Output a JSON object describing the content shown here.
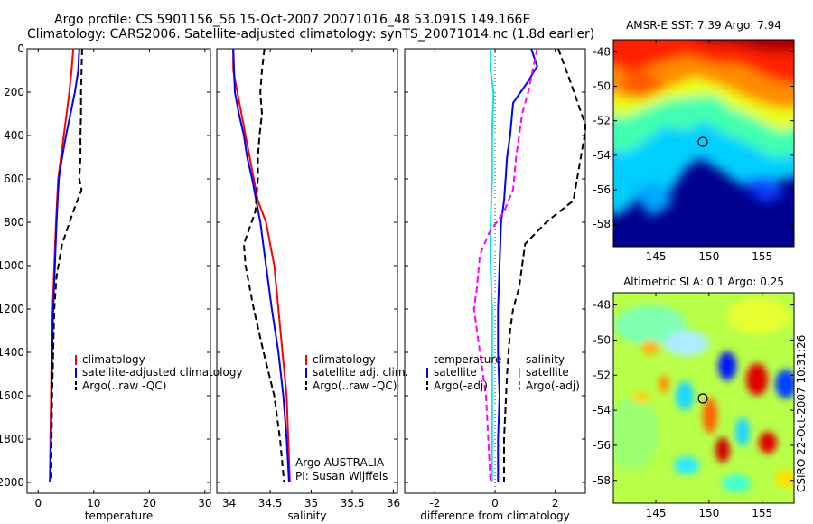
{
  "header": {
    "title_line1": "Argo profile: CS 5901156_56 15-Oct-2007 20071016_48 53.091S 149.166E",
    "title_line2": "Climatology: CARS2006. Satellite-adjusted climatology: synTS_20071014.nc (1.8d earlier)"
  },
  "footer": {
    "stamp": "CSIRO 22-Oct-2007 10:31:26"
  },
  "credits": {
    "line1": "Argo AUSTRALIA",
    "line2": "PI: Susan Wijffels"
  },
  "colors": {
    "red": "#ff0000",
    "blue": "#0000ff",
    "black": "#000000",
    "cyan": "#00e5ee",
    "magenta": "#ff00ff"
  },
  "chart_data": [
    {
      "type": "line",
      "id": "temperature",
      "xlabel": "temperature",
      "xlim": [
        -2,
        31
      ],
      "ylim": [
        2050,
        0
      ],
      "xticks": [
        0,
        10,
        20,
        30
      ],
      "yticks": [
        0,
        200,
        400,
        600,
        800,
        1000,
        1200,
        1400,
        1600,
        1800,
        2000
      ],
      "legend": [
        "climatology",
        "satellite-adjusted climatology",
        "Argo(..raw -QC)"
      ],
      "series": [
        {
          "name": "climatology",
          "color": "red",
          "dash": "",
          "x": [
            6.3,
            6.0,
            5.6,
            5.1,
            4.6,
            4.1,
            3.6,
            3.2,
            2.9,
            2.6,
            2.4,
            2.3,
            2.2,
            2.15,
            2.1
          ],
          "y": [
            0,
            100,
            200,
            300,
            400,
            500,
            600,
            800,
            1000,
            1200,
            1400,
            1600,
            1800,
            1900,
            2000
          ]
        },
        {
          "name": "satellite-adjusted climatology",
          "color": "blue",
          "dash": "",
          "x": [
            7.4,
            7.2,
            6.6,
            5.8,
            5.0,
            4.3,
            3.7,
            3.3,
            3.0,
            2.7,
            2.5,
            2.4,
            2.3,
            2.2,
            2.15
          ],
          "y": [
            0,
            100,
            200,
            300,
            400,
            500,
            600,
            800,
            1000,
            1200,
            1400,
            1600,
            1800,
            1900,
            2000
          ]
        },
        {
          "name": "Argo(..raw -QC)",
          "color": "black",
          "dash": "7,4",
          "x": [
            7.9,
            7.8,
            7.7,
            7.7,
            7.6,
            7.6,
            7.4,
            7.8,
            6.3,
            4.3,
            3.3,
            2.9,
            2.7,
            2.5,
            2.4,
            2.35
          ],
          "y": [
            0,
            100,
            200,
            300,
            400,
            500,
            600,
            650,
            750,
            900,
            1050,
            1200,
            1400,
            1600,
            1800,
            2000
          ]
        }
      ]
    },
    {
      "type": "line",
      "id": "salinity",
      "xlabel": "salinity",
      "xlim": [
        33.85,
        36.05
      ],
      "ylim": [
        2050,
        0
      ],
      "xticks": [
        34,
        34.5,
        35,
        35.5,
        36
      ],
      "yticks": [
        0,
        200,
        400,
        600,
        800,
        1000,
        1200,
        1400,
        1600,
        1800,
        2000
      ],
      "legend": [
        "climatology",
        "satellite adj. clim.",
        "Argo(..raw -QC)"
      ],
      "series": [
        {
          "name": "climatology",
          "color": "red",
          "dash": "",
          "x": [
            34.05,
            34.05,
            34.1,
            34.15,
            34.2,
            34.25,
            34.3,
            34.35,
            34.45,
            34.55,
            34.6,
            34.65,
            34.7,
            34.72,
            34.74
          ],
          "y": [
            0,
            100,
            200,
            300,
            400,
            500,
            600,
            700,
            800,
            1000,
            1200,
            1400,
            1600,
            1800,
            2000
          ]
        },
        {
          "name": "satellite adj. clim.",
          "color": "blue",
          "dash": "",
          "x": [
            34.05,
            34.06,
            34.07,
            34.12,
            34.18,
            34.22,
            34.28,
            34.33,
            34.38,
            34.45,
            34.52,
            34.6,
            34.66,
            34.7,
            34.73
          ],
          "y": [
            0,
            100,
            200,
            300,
            400,
            500,
            600,
            700,
            800,
            1000,
            1200,
            1400,
            1600,
            1800,
            2000
          ]
        },
        {
          "name": "Argo(..raw -QC)",
          "color": "black",
          "dash": "7,4",
          "x": [
            34.43,
            34.4,
            34.38,
            34.4,
            34.37,
            34.35,
            34.35,
            34.33,
            34.32,
            34.18,
            34.2,
            34.3,
            34.42,
            34.55,
            34.62,
            34.67
          ],
          "y": [
            0,
            100,
            200,
            300,
            400,
            500,
            600,
            700,
            750,
            900,
            1000,
            1200,
            1400,
            1600,
            1800,
            2000
          ]
        }
      ]
    },
    {
      "type": "line",
      "id": "difference",
      "xlabel": "difference from climatology",
      "xlim": [
        -3,
        3
      ],
      "ylim": [
        2050,
        0
      ],
      "xticks": [
        -2,
        0,
        2
      ],
      "yticks": [
        0,
        200,
        400,
        600,
        800,
        1000,
        1200,
        1400,
        1600,
        1800,
        2000
      ],
      "legend_temperature_title": "temperature",
      "legend_salinity_title": "salinity",
      "legend": [
        "satellite",
        "Argo(-adj)",
        "satellite",
        "Argo(-adj)"
      ],
      "series": [
        {
          "name": "temperature satellite",
          "color": "blue",
          "dash": "",
          "x": [
            1.2,
            1.4,
            1.1,
            0.6,
            0.5,
            0.4,
            0.35,
            0.3,
            0.2,
            0.15,
            0.1,
            0.1,
            0.15,
            0.1,
            0.1
          ],
          "y": [
            0,
            80,
            150,
            250,
            400,
            500,
            600,
            700,
            800,
            1000,
            1200,
            1400,
            1600,
            1800,
            2000
          ]
        },
        {
          "name": "temperature Argo(-adj)",
          "color": "black",
          "dash": "7,4",
          "x": [
            2.1,
            2.5,
            3.0,
            3.0,
            2.6,
            1.7,
            1.0,
            0.8,
            0.6,
            0.5,
            0.4,
            0.3,
            0.3
          ],
          "y": [
            0,
            150,
            350,
            380,
            700,
            800,
            900,
            1100,
            1200,
            1300,
            1500,
            1800,
            2000
          ]
        },
        {
          "name": "salinity satellite",
          "color": "cyan",
          "dash": "",
          "x": [
            -0.15,
            -0.15,
            -0.05,
            -0.1,
            -0.1,
            -0.15,
            -0.15,
            -0.1,
            -0.1,
            -0.1,
            -0.1
          ],
          "y": [
            0,
            100,
            200,
            400,
            600,
            800,
            1000,
            1200,
            1400,
            1600,
            2000
          ]
        },
        {
          "name": "salinity Argo(-adj)",
          "color": "magenta",
          "dash": "7,4",
          "x": [
            1.4,
            1.1,
            0.9,
            0.7,
            0.6,
            0.3,
            -0.2,
            -0.5,
            -0.6,
            -0.7,
            -0.5,
            -0.3,
            -0.15
          ],
          "y": [
            0,
            200,
            300,
            500,
            650,
            750,
            850,
            950,
            1100,
            1200,
            1400,
            1600,
            2000
          ]
        }
      ]
    },
    {
      "type": "heatmap",
      "id": "sst_map",
      "title": "AMSR-E SST: 7.39 Argo: 7.94",
      "xlim": [
        141,
        158
      ],
      "ylim": [
        -59.3,
        -47.3
      ],
      "xticks": [
        145,
        150,
        155
      ],
      "yticks": [
        -48,
        -50,
        -52,
        -54,
        -56,
        -58
      ],
      "marker": {
        "lon": 149.166,
        "lat": -53.091
      },
      "colorscale": "jet"
    },
    {
      "type": "heatmap",
      "id": "sla_map",
      "title": "Altimetric SLA: 0.1 Argo: 0.25",
      "xlim": [
        141,
        158
      ],
      "ylim": [
        -59.3,
        -47.3
      ],
      "xticks": [
        145,
        150,
        155
      ],
      "yticks": [
        -48,
        -50,
        -52,
        -54,
        -56,
        -58
      ],
      "marker": {
        "lon": 149.166,
        "lat": -53.091
      },
      "colorscale": "jet"
    }
  ]
}
